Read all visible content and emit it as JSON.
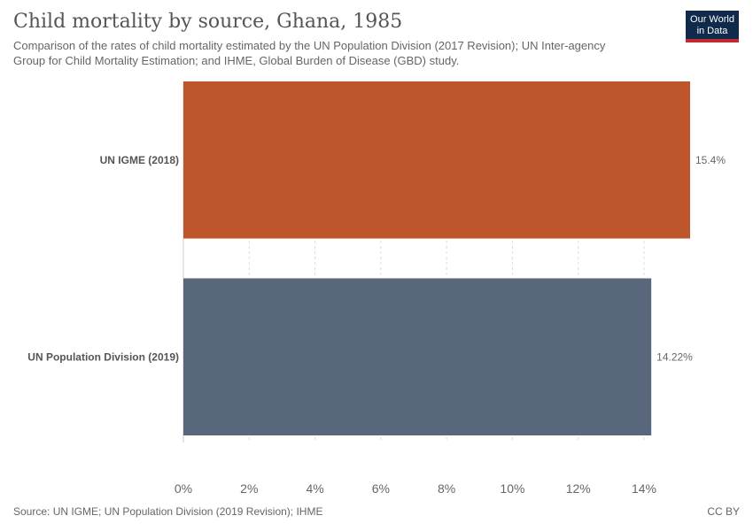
{
  "header": {
    "title": "Child mortality by source, Ghana, 1985",
    "subtitle": "Comparison of the rates of child mortality estimated by the UN Population Division (2017 Revision); UN Inter-agency Group for Child Mortality Estimation; and IHME, Global Burden of Disease (GBD) study.",
    "logo_line1": "Our World",
    "logo_line2": "in Data"
  },
  "chart_data": {
    "type": "bar",
    "orientation": "horizontal",
    "categories": [
      "UN IGME (2018)",
      "UN Population Division (2019)"
    ],
    "values": [
      15.4,
      14.22
    ],
    "value_labels": [
      "15.4%",
      "14.22%"
    ],
    "colors": [
      "#be562c",
      "#58677c"
    ],
    "xlim": [
      0,
      15.4
    ],
    "xticks": [
      0,
      2,
      4,
      6,
      8,
      10,
      12,
      14
    ],
    "xtick_labels": [
      "0%",
      "2%",
      "4%",
      "6%",
      "8%",
      "10%",
      "12%",
      "14%"
    ],
    "grid": true,
    "title": "Child mortality by source, Ghana, 1985"
  },
  "footer": {
    "source": "Source: UN IGME; UN Population Division (2019 Revision); IHME",
    "license": "CC BY"
  }
}
